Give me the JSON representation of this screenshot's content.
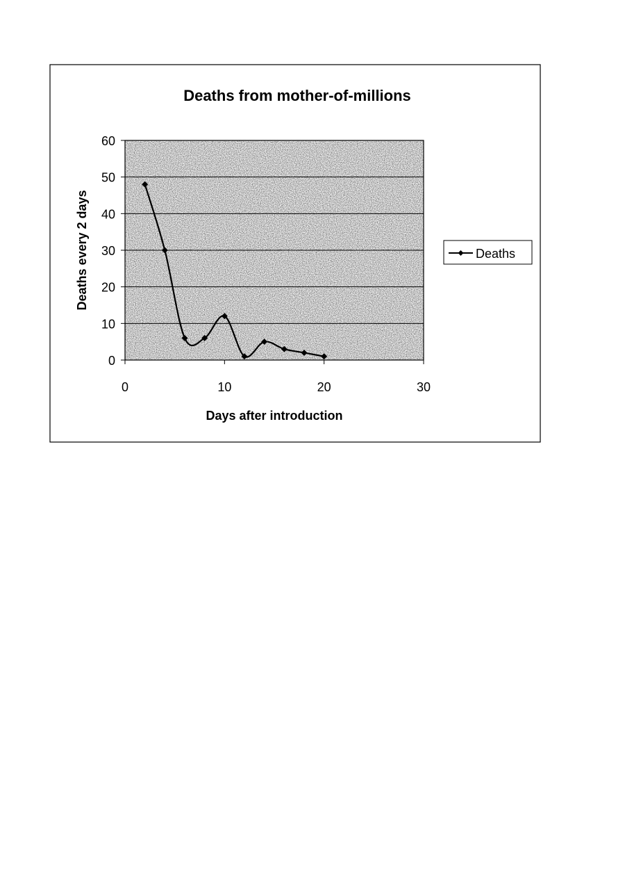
{
  "chart_data": {
    "type": "line",
    "title": "Deaths from mother-of-millions",
    "xlabel": "Days after introduction",
    "ylabel": "Deaths every 2 days",
    "xlim": [
      0,
      30
    ],
    "ylim": [
      0,
      60
    ],
    "xticks": [
      0,
      10,
      20,
      30
    ],
    "yticks": [
      0,
      10,
      20,
      30,
      40,
      50,
      60
    ],
    "grid": "horizontal",
    "legend_position": "right",
    "series": [
      {
        "name": "Deaths",
        "color": "#000000",
        "marker": "diamond",
        "smooth": true,
        "x": [
          2,
          4,
          6,
          8,
          10,
          12,
          14,
          16,
          18,
          20
        ],
        "y": [
          48,
          30,
          6,
          6,
          12,
          1,
          5,
          3,
          2,
          1
        ]
      }
    ]
  }
}
